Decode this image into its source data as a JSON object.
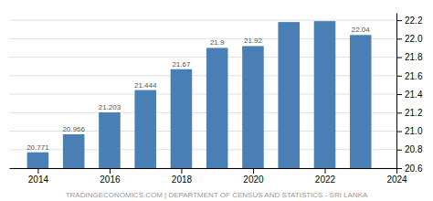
{
  "chart_data": {
    "type": "bar",
    "x": [
      2014,
      2015,
      2016,
      2017,
      2018,
      2019,
      2020,
      2021,
      2022,
      2023
    ],
    "values": [
      20.771,
      20.966,
      21.203,
      21.444,
      21.67,
      21.9,
      21.92,
      22.18,
      22.19,
      22.04
    ],
    "value_labels": [
      "20.771",
      "20.966",
      "21.203",
      "21.444",
      "21.67",
      "21.9",
      "21.92",
      null,
      null,
      "22.04"
    ],
    "data_labels": true,
    "color": "#4a7fb5",
    "xlim": [
      2013.2,
      2024.0
    ],
    "xticks": [
      2014,
      2016,
      2018,
      2020,
      2022,
      2024
    ],
    "ylim": [
      20.6,
      22.28
    ],
    "yticks": [
      20.6,
      20.8,
      {
        "value": 21.0,
        "label": "21.0"
      },
      21.2,
      21.4,
      21.6,
      21.8,
      {
        "value": 22.0,
        "label": "22.0"
      },
      22.2
    ],
    "grid": true,
    "annotations": [
      "TRADINGECONOMICS.COM | DEPARTMENT OF CENSUS AND STATISTICS - SRI LANKA"
    ]
  }
}
